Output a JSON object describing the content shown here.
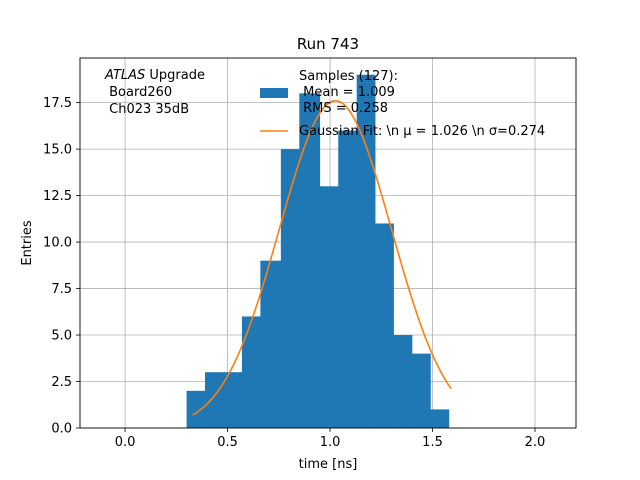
{
  "chart_data": {
    "type": "bar",
    "title": "Run 743",
    "xlabel": "time [ns]",
    "ylabel": "Entries",
    "xlim": [
      -0.22,
      2.2
    ],
    "ylim": [
      0,
      19.9
    ],
    "grid": true,
    "xticks": [
      0.0,
      0.5,
      1.0,
      1.5,
      2.0
    ],
    "xtick_labels": [
      "0.0",
      "0.5",
      "1.0",
      "1.5",
      "2.0"
    ],
    "yticks": [
      0.0,
      2.5,
      5.0,
      7.5,
      10.0,
      12.5,
      15.0,
      17.5
    ],
    "ytick_labels": [
      "0.0",
      "2.5",
      "5.0",
      "7.5",
      "10.0",
      "12.5",
      "15.0",
      "17.5"
    ],
    "annotation": {
      "italic": "ATLAS",
      "line1_rest": " Upgrade",
      "line2": " Board260",
      "line3": " Ch023 35dB"
    },
    "histogram": {
      "name_lines": [
        "Samples (127):",
        " Mean = 1.009",
        " RMS = 0.258"
      ],
      "color": "#1f77b4",
      "bin_edges": [
        0.3,
        0.39,
        0.48,
        0.57,
        0.66,
        0.76,
        0.85,
        0.95,
        1.04,
        1.13,
        1.22,
        1.31,
        1.4,
        1.49,
        1.58,
        1.62
      ],
      "counts": [
        2,
        3,
        3,
        6,
        9,
        15,
        18,
        13,
        16,
        19,
        11,
        5,
        4,
        1,
        0
      ]
    },
    "fit": {
      "name": "Gaussian Fit: \\n $\\mu$ = 1.026 \\n $\\sigma$=0.274",
      "legend_prefix": "Gaussian Fit: \\n ",
      "mu_label": "μ = 1.026 \\n ",
      "sigma_label": "σ=0.274",
      "color": "#ff7f0e",
      "mu": 1.026,
      "sigma": 0.274,
      "amplitude": 17.6,
      "x_range": [
        0.33,
        1.59
      ]
    }
  }
}
